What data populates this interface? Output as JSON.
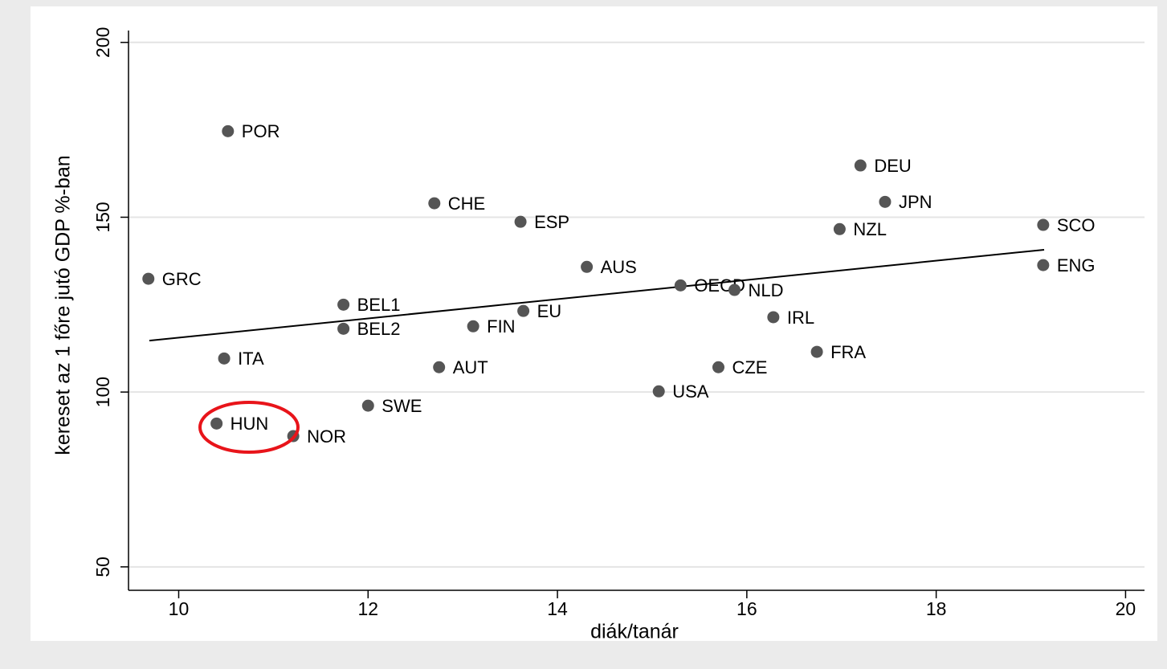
{
  "chart_data": {
    "type": "scatter",
    "x_label": "diák/tanár",
    "y_label": "kereset az 1 főre jutó GDP %-ban",
    "labels": [
      "POR",
      "GRC",
      "BEL1",
      "BEL2",
      "ITA",
      "HUN",
      "NOR",
      "SWE",
      "CHE",
      "ESP",
      "FIN",
      "AUT",
      "EU",
      "AUS",
      "OECD",
      "NLD",
      "IRL",
      "CZE",
      "USA",
      "FRA",
      "DEU",
      "JPN",
      "NZL",
      "SCO",
      "ENG"
    ],
    "x": [
      10.52,
      9.68,
      11.74,
      11.74,
      10.48,
      10.4,
      11.21,
      12.0,
      12.7,
      13.61,
      13.11,
      12.75,
      13.64,
      14.31,
      15.3,
      15.87,
      16.28,
      15.7,
      15.07,
      16.74,
      17.2,
      17.46,
      16.98,
      19.13,
      19.13
    ],
    "values": [
      174.6,
      132.4,
      125.0,
      118.1,
      109.6,
      91.0,
      87.4,
      96.1,
      154.0,
      148.7,
      118.8,
      107.1,
      123.2,
      135.8,
      130.5,
      129.2,
      121.4,
      107.1,
      100.2,
      111.5,
      164.8,
      154.4,
      146.6,
      147.8,
      136.3
    ],
    "color": "#555555",
    "fit_line": {
      "x": [
        9.69,
        19.14
      ],
      "y": [
        114.7,
        140.7
      ],
      "color": "#000000"
    },
    "xlim": [
      9.47,
      20.2
    ],
    "ylim": [
      43.3,
      203.4
    ],
    "xticks": [
      10,
      12,
      14,
      16,
      18,
      20
    ],
    "yticks": [
      50,
      100,
      150,
      200
    ],
    "grid": true
  }
}
